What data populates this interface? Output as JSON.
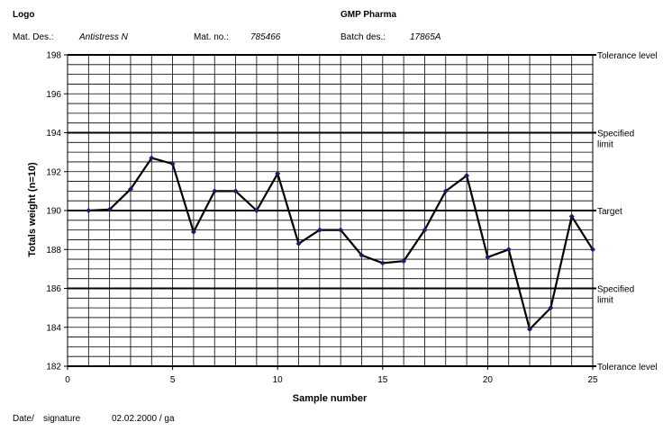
{
  "header": {
    "logo": "Logo",
    "company": "GMP Pharma",
    "mat_des_label": "Mat. Des.:",
    "mat_des_value": "Antistress N",
    "mat_no_label": "Mat. no.:",
    "mat_no_value": "785466",
    "batch_label": "Batch des.:",
    "batch_value": "17865A"
  },
  "footer": {
    "date_label": "Date/",
    "signature_label": "signature",
    "date_value": "02.02.2000 / ga"
  },
  "chart_data": {
    "type": "line",
    "xlabel": "Sample number",
    "ylabel": "Totals weight (n=10)",
    "xlim": [
      0,
      25
    ],
    "ylim": [
      182,
      198
    ],
    "x_ticks": [
      "0",
      "5",
      "10",
      "15",
      "20",
      "25"
    ],
    "y_ticks": [
      "182",
      "184",
      "186",
      "188",
      "190",
      "192",
      "194",
      "196",
      "198"
    ],
    "minor_grid_step": 0.5,
    "grid": true,
    "colors": {
      "line": "#000000",
      "marker": "#1a1a6e",
      "grid": "#000000"
    },
    "reference_lines": [
      {
        "label": "Tolerance level",
        "y": 198
      },
      {
        "label": "Specified limit",
        "y": 194
      },
      {
        "label": "Target",
        "y": 190
      },
      {
        "label": "Specified limit",
        "y": 186
      },
      {
        "label": "Tolerance level",
        "y": 182
      }
    ],
    "series": [
      {
        "x": [
          1,
          2,
          3,
          4,
          5,
          6,
          7,
          8,
          9,
          10,
          11,
          12,
          13,
          14,
          15,
          16,
          17,
          18,
          19,
          20,
          21,
          22,
          23,
          24,
          25
        ],
        "y": [
          190.0,
          190.05,
          191.1,
          192.7,
          192.4,
          188.9,
          191.0,
          191.0,
          190.0,
          191.9,
          188.3,
          189.0,
          189.0,
          187.7,
          187.3,
          187.4,
          189.0,
          191.0,
          191.8,
          187.6,
          188.0,
          183.9,
          185.0,
          189.7,
          188.0
        ]
      }
    ]
  }
}
